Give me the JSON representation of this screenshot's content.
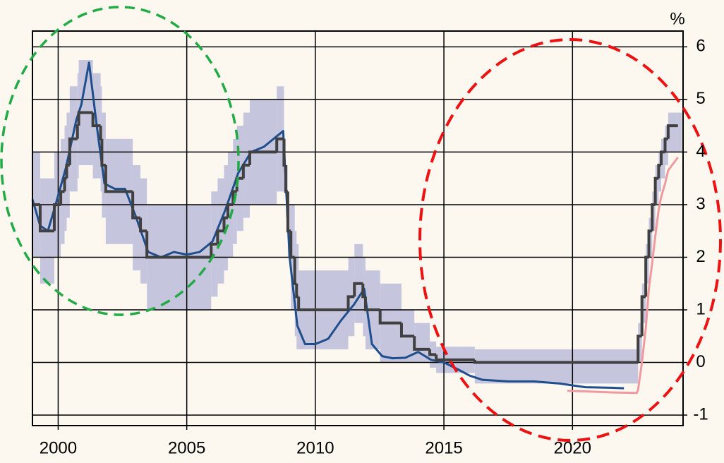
{
  "chart_data": {
    "type": "line",
    "y_unit": "%",
    "y_axis": "right",
    "grid": true,
    "xlim": [
      1999.0,
      2024.3
    ],
    "ylim": [
      -1.2,
      6.3
    ],
    "xticks": [
      2000,
      2005,
      2010,
      2015,
      2020
    ],
    "yticks": [
      -1,
      0,
      1,
      2,
      3,
      4,
      5,
      6
    ],
    "band": {
      "color": "#b4b4d8",
      "x": [
        1999.0,
        1999.3,
        1999.85,
        2000.1,
        2000.25,
        2000.33,
        2000.45,
        2000.75,
        2000.8,
        2001.35,
        2001.65,
        2001.7,
        2001.85,
        2002.9,
        2003.2,
        2003.45,
        2005.95,
        2006.2,
        2006.45,
        2006.6,
        2006.8,
        2006.95,
        2007.2,
        2007.45,
        2008.5,
        2008.78,
        2008.85,
        2008.93,
        2009.05,
        2009.2,
        2009.27,
        2009.35,
        2011.28,
        2011.52,
        2011.85,
        2011.95,
        2012.52,
        2013.35,
        2013.85,
        2014.45,
        2014.7,
        2016.2,
        2022.55,
        2022.7,
        2022.85,
        2022.97,
        2023.1,
        2023.22,
        2023.35,
        2023.45,
        2023.6,
        2023.72,
        2024.1
      ],
      "lower": [
        2.0,
        1.5,
        2.0,
        2.25,
        2.5,
        2.75,
        3.25,
        3.5,
        3.75,
        3.5,
        3.25,
        2.75,
        2.25,
        1.75,
        1.5,
        1.0,
        1.25,
        1.5,
        1.75,
        2.0,
        2.25,
        2.5,
        2.75,
        3.0,
        3.25,
        3.25,
        2.75,
        2.0,
        1.0,
        0.5,
        0.25,
        0.25,
        0.5,
        0.75,
        0.5,
        0.25,
        0.0,
        0.0,
        0.0,
        -0.1,
        -0.2,
        -0.4,
        0.0,
        0.75,
        1.5,
        2.0,
        2.5,
        3.0,
        3.25,
        3.5,
        3.75,
        4.0,
        4.0
      ],
      "upper": [
        4.0,
        3.5,
        4.0,
        4.25,
        4.5,
        4.75,
        5.25,
        5.5,
        5.75,
        5.5,
        5.25,
        4.75,
        4.25,
        3.75,
        3.5,
        3.0,
        3.25,
        3.5,
        3.75,
        4.0,
        4.25,
        4.5,
        4.75,
        5.0,
        5.25,
        4.25,
        3.75,
        3.0,
        3.0,
        2.5,
        2.25,
        1.75,
        2.0,
        2.25,
        2.0,
        1.75,
        1.5,
        1.0,
        0.75,
        0.4,
        0.3,
        0.25,
        0.75,
        1.5,
        2.25,
        2.75,
        3.25,
        3.75,
        4.0,
        4.25,
        4.5,
        4.75,
        4.75
      ]
    },
    "series": [
      {
        "color": "#1f4e8c",
        "width": 3,
        "x": [
          1999.0,
          1999.3,
          1999.6,
          1999.9,
          2000.3,
          2000.7,
          2000.9,
          2001.2,
          2001.5,
          2001.8,
          2002.2,
          2002.6,
          2003.0,
          2003.5,
          2004.0,
          2004.5,
          2005.0,
          2005.5,
          2006.0,
          2006.5,
          2007.0,
          2007.5,
          2008.0,
          2008.5,
          2008.75,
          2009.0,
          2009.3,
          2009.6,
          2010.0,
          2010.5,
          2011.0,
          2011.5,
          2011.9,
          2012.2,
          2012.6,
          2013.0,
          2013.5,
          2014.0,
          2014.5,
          2015.0,
          2015.5,
          2016.0,
          2016.5,
          2017.5,
          2018.5,
          2019.5,
          2020.5,
          2021.5,
          2022.0
        ],
        "values": [
          3.1,
          2.6,
          2.5,
          3.0,
          3.7,
          4.6,
          4.9,
          5.7,
          4.5,
          3.4,
          3.3,
          3.3,
          2.8,
          2.1,
          2.0,
          2.1,
          2.05,
          2.1,
          2.3,
          2.9,
          3.6,
          4.0,
          4.1,
          4.3,
          4.4,
          2.0,
          0.7,
          0.35,
          0.35,
          0.45,
          0.8,
          1.1,
          1.4,
          0.35,
          0.12,
          0.08,
          0.09,
          0.2,
          0.05,
          0.0,
          -0.12,
          -0.25,
          -0.33,
          -0.36,
          -0.36,
          -0.4,
          -0.47,
          -0.48,
          -0.49
        ]
      },
      {
        "color": "#f09aa0",
        "width": 3,
        "x": [
          2019.8,
          2020.5,
          2021.5,
          2022.5,
          2022.55,
          2022.7,
          2022.85,
          2022.97,
          2023.1,
          2023.22,
          2023.35,
          2023.45,
          2023.6,
          2023.72,
          2024.1
        ],
        "values": [
          -0.54,
          -0.55,
          -0.57,
          -0.58,
          -0.52,
          0.0,
          0.65,
          1.4,
          1.9,
          2.4,
          2.9,
          3.15,
          3.4,
          3.65,
          3.9
        ]
      },
      {
        "color": "#404040",
        "width": 4,
        "step": true,
        "x": [
          1999.0,
          1999.3,
          1999.85,
          2000.1,
          2000.25,
          2000.33,
          2000.45,
          2000.75,
          2000.8,
          2001.35,
          2001.65,
          2001.7,
          2001.85,
          2002.9,
          2003.2,
          2003.45,
          2005.95,
          2006.2,
          2006.45,
          2006.6,
          2006.8,
          2006.95,
          2007.2,
          2007.45,
          2008.5,
          2008.78,
          2008.85,
          2008.93,
          2009.05,
          2009.2,
          2009.27,
          2009.35,
          2011.28,
          2011.52,
          2011.85,
          2011.95,
          2012.52,
          2013.35,
          2013.85,
          2014.45,
          2014.7,
          2016.2,
          2022.55,
          2022.7,
          2022.85,
          2022.97,
          2023.1,
          2023.22,
          2023.35,
          2023.45,
          2023.6,
          2023.72,
          2024.1
        ],
        "values": [
          3.0,
          2.5,
          3.0,
          3.25,
          3.5,
          3.75,
          4.25,
          4.5,
          4.75,
          4.5,
          4.25,
          3.75,
          3.25,
          2.75,
          2.5,
          2.0,
          2.25,
          2.5,
          2.75,
          3.0,
          3.25,
          3.5,
          3.75,
          4.0,
          4.25,
          3.75,
          3.25,
          2.5,
          2.0,
          1.5,
          1.25,
          1.0,
          1.25,
          1.5,
          1.25,
          1.0,
          0.75,
          0.5,
          0.25,
          0.15,
          0.05,
          0.0,
          0.5,
          1.25,
          2.0,
          2.5,
          3.0,
          3.5,
          3.75,
          4.0,
          4.25,
          4.5,
          4.5
        ]
      }
    ]
  }
}
